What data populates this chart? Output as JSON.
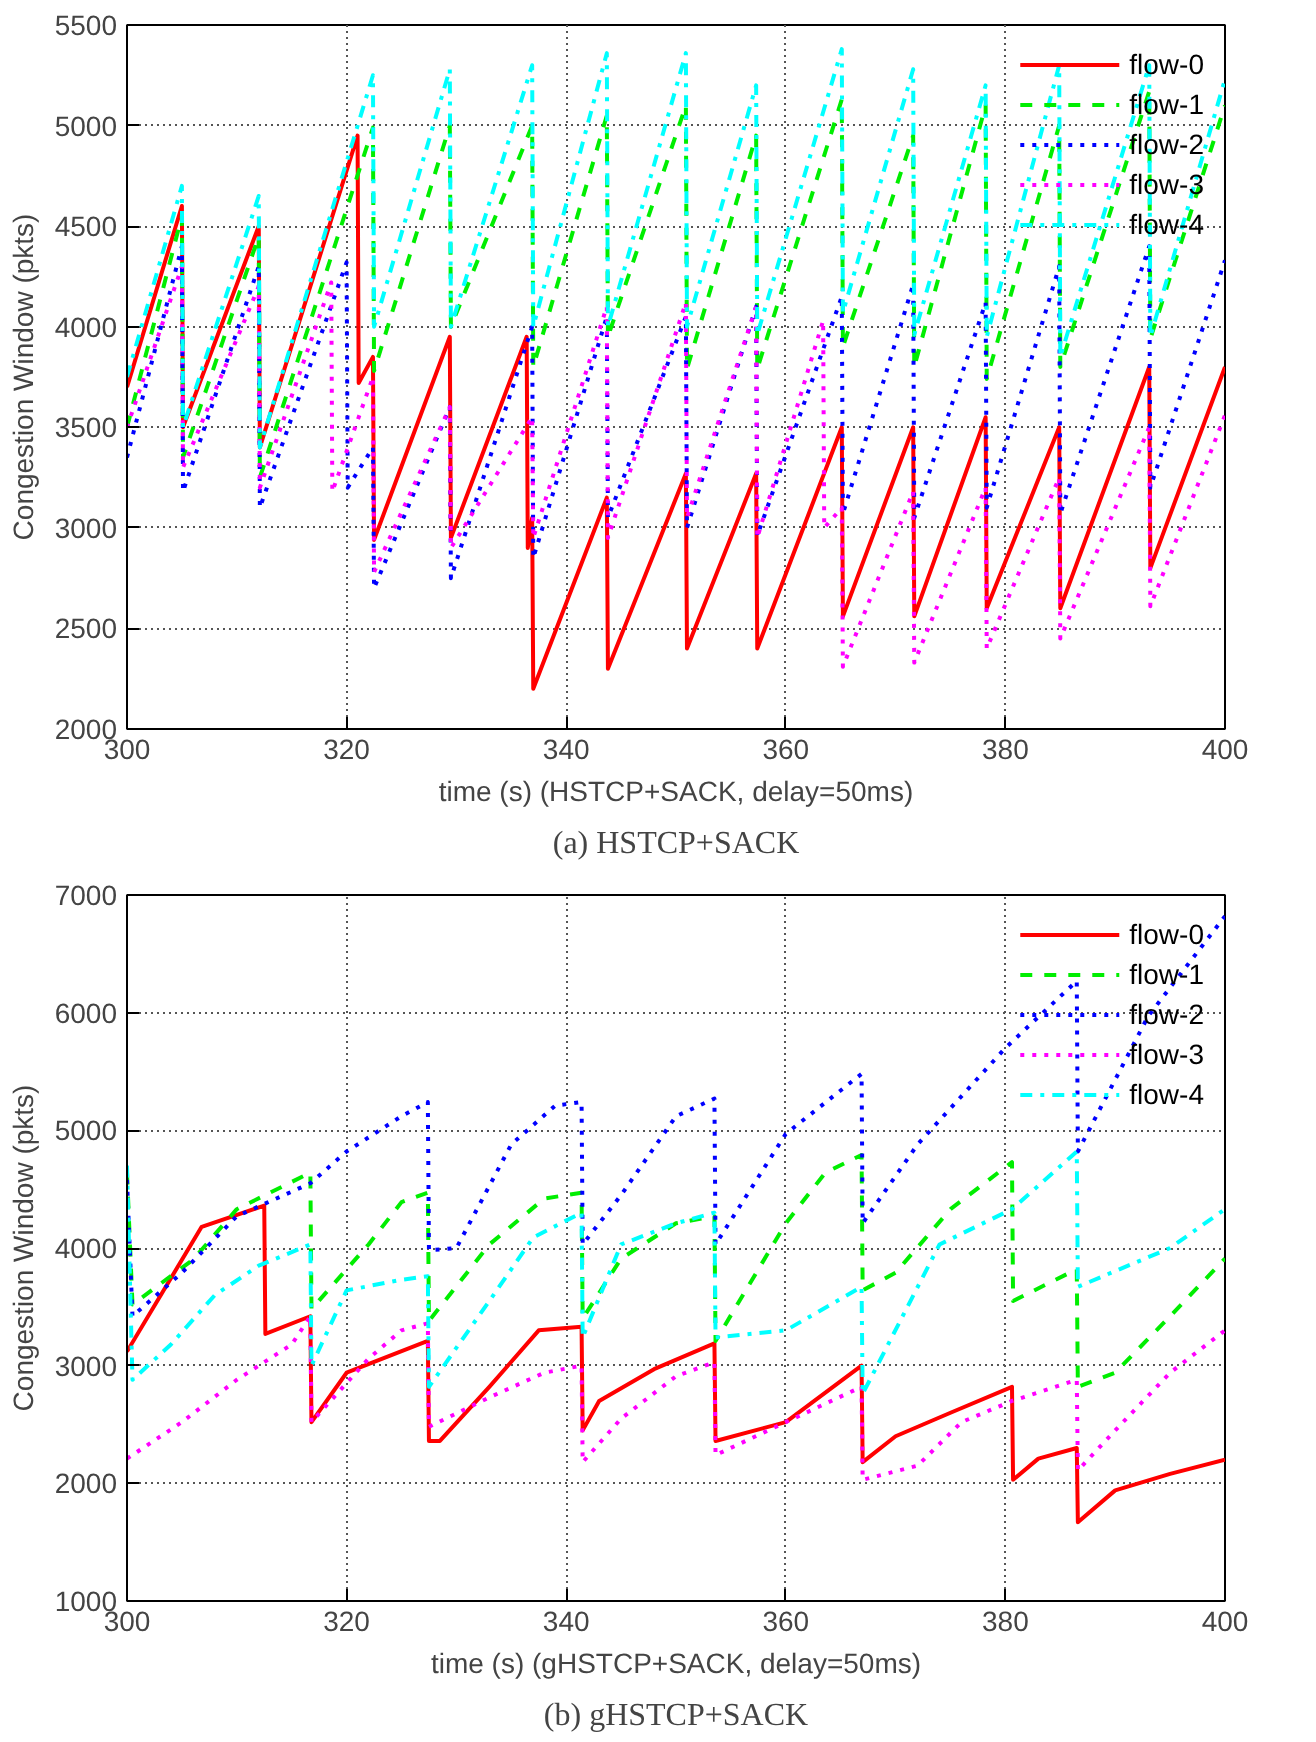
{
  "chart_data": [
    {
      "type": "line",
      "xlabel": "time (s) (HSTCP+SACK, delay=50ms)",
      "ylabel": "Congestion Window (pkts)",
      "annotations": [
        "(a) HSTCP+SACK"
      ],
      "xlim": [
        300,
        400
      ],
      "ylim": [
        2000,
        5500
      ],
      "xticks": [
        300,
        320,
        340,
        360,
        380,
        400
      ],
      "yticks": [
        2000,
        2500,
        3000,
        3500,
        4000,
        4500,
        5000,
        5500
      ],
      "grid": true,
      "legend": "top right",
      "series": [
        {
          "name": "flow-0",
          "color": "#ff0000",
          "line_style": "solid",
          "x": [
            300,
            305,
            305.1,
            312,
            312.1,
            321,
            321.1,
            322.4,
            322.5,
            329.4,
            329.5,
            336.4,
            336.5,
            336.9,
            337,
            343.7,
            343.8,
            350.9,
            351,
            357.3,
            357.4,
            365.1,
            365.2,
            371.6,
            371.7,
            378.2,
            378.3,
            384.9,
            385,
            393.1,
            393.2,
            400
          ],
          "values": [
            3700,
            4600,
            3500,
            4500,
            3400,
            4950,
            3720,
            3850,
            2940,
            3950,
            2950,
            3950,
            2900,
            3050,
            2200,
            3150,
            2300,
            3270,
            2400,
            3270,
            2400,
            3500,
            2560,
            3500,
            2560,
            3550,
            2600,
            3500,
            2600,
            3800,
            2800,
            3800
          ]
        },
        {
          "name": "flow-1",
          "color": "#00ee00",
          "line_style": "dashed",
          "x": [
            300,
            305,
            305.1,
            312,
            312.1,
            322.4,
            322.5,
            329.4,
            329.5,
            336.9,
            337,
            343.7,
            343.8,
            350.9,
            351,
            357.3,
            357.4,
            365.1,
            365.2,
            371.6,
            371.7,
            378.2,
            378.3,
            384.9,
            385,
            393.1,
            393.2,
            400
          ],
          "values": [
            3500,
            4550,
            3350,
            4450,
            3250,
            4990,
            3780,
            5000,
            4000,
            5000,
            3800,
            5050,
            3950,
            5100,
            3790,
            4950,
            3790,
            5130,
            3900,
            4950,
            3800,
            5100,
            3740,
            5000,
            3800,
            5170,
            3940,
            5100
          ]
        },
        {
          "name": "flow-2",
          "color": "#0000ff",
          "line_style": "dotted",
          "x": [
            300,
            305,
            305.1,
            312,
            312.1,
            320,
            320.1,
            322.4,
            322.5,
            329.4,
            329.5,
            336.9,
            337,
            343.7,
            343.8,
            350.9,
            351,
            357.3,
            357.4,
            365.1,
            365.2,
            371.6,
            371.7,
            378.2,
            378.3,
            384.9,
            385,
            393.1,
            393.2,
            400
          ],
          "values": [
            3350,
            4400,
            3180,
            4300,
            3100,
            4320,
            3200,
            3400,
            2700,
            3600,
            2750,
            4000,
            2850,
            4050,
            3050,
            4050,
            3000,
            4100,
            2960,
            4150,
            3070,
            4210,
            3050,
            4120,
            3100,
            4300,
            3070,
            4400,
            3200,
            4330
          ]
        },
        {
          "name": "flow-3",
          "color": "#ff00ff",
          "line_style": "dotted",
          "x": [
            300,
            305,
            305.1,
            312,
            312.1,
            318.6,
            318.7,
            322.4,
            322.5,
            329.4,
            329.5,
            336.9,
            337,
            343.7,
            343.8,
            350.9,
            351,
            357.3,
            357.4,
            363.4,
            363.5,
            365.1,
            365.2,
            371.6,
            371.7,
            378.2,
            378.3,
            384.9,
            385,
            393.1,
            393.2,
            400
          ],
          "values": [
            3500,
            4300,
            3300,
            4200,
            3200,
            4220,
            3180,
            3750,
            2780,
            3600,
            2900,
            3550,
            2950,
            4100,
            2950,
            4120,
            3050,
            4100,
            2950,
            4030,
            3000,
            3100,
            2310,
            3180,
            2330,
            3200,
            2400,
            3250,
            2450,
            3500,
            2610,
            3560
          ]
        },
        {
          "name": "flow-4",
          "color": "#00ffff",
          "line_style": "dashdot",
          "x": [
            300,
            305,
            305.1,
            312,
            312.1,
            322.4,
            322.5,
            329.4,
            329.5,
            336.9,
            337,
            343.7,
            343.8,
            350.9,
            351,
            357.3,
            357.4,
            365.1,
            365.2,
            371.6,
            371.7,
            378.2,
            378.3,
            384.9,
            385,
            393.1,
            393.2,
            400
          ],
          "values": [
            3750,
            4700,
            3500,
            4650,
            3400,
            5250,
            4000,
            5280,
            4000,
            5300,
            4000,
            5360,
            4000,
            5360,
            4000,
            5200,
            3960,
            5380,
            4070,
            5280,
            3960,
            5200,
            3950,
            5300,
            3850,
            5300,
            3950,
            5230
          ]
        }
      ]
    },
    {
      "type": "line",
      "xlabel": "time (s) (gHSTCP+SACK, delay=50ms)",
      "ylabel": "Congestion Window (pkts)",
      "annotations": [
        "(b) gHSTCP+SACK"
      ],
      "xlim": [
        300,
        400
      ],
      "ylim": [
        1000,
        7000
      ],
      "xticks": [
        300,
        320,
        340,
        360,
        380,
        400
      ],
      "yticks": [
        1000,
        2000,
        3000,
        4000,
        5000,
        6000,
        7000
      ],
      "grid": true,
      "legend": "top right",
      "series": [
        {
          "name": "flow-0",
          "color": "#ff0000",
          "line_style": "solid",
          "x": [
            300,
            306.8,
            312.5,
            312.6,
            316.7,
            316.8,
            320,
            327.4,
            327.5,
            328.5,
            333,
            337.5,
            341.4,
            341.5,
            343,
            348,
            353.5,
            353.6,
            360,
            366.9,
            367,
            370,
            375,
            380.6,
            380.7,
            383,
            386.5,
            386.6,
            390,
            395,
            400
          ],
          "values": [
            3120,
            4180,
            4360,
            3270,
            3420,
            2520,
            2940,
            3210,
            2360,
            2360,
            2820,
            3300,
            3330,
            2450,
            2700,
            2970,
            3190,
            2360,
            2520,
            3000,
            2180,
            2400,
            2600,
            2820,
            2030,
            2210,
            2300,
            1670,
            1940,
            2080,
            2200
          ]
        },
        {
          "name": "flow-1",
          "color": "#00ee00",
          "line_style": "dashed",
          "x": [
            300,
            300.5,
            306,
            310,
            316.7,
            316.8,
            322,
            325,
            327.4,
            327.5,
            333,
            338,
            341.4,
            341.5,
            345,
            350,
            353.5,
            353.6,
            360,
            363.6,
            366.9,
            367,
            370,
            375,
            380.6,
            380.7,
            386.5,
            386.6,
            390,
            395,
            400
          ],
          "values": [
            4640,
            3520,
            3900,
            4330,
            4640,
            3480,
            4030,
            4390,
            4470,
            3380,
            4030,
            4420,
            4470,
            3400,
            3910,
            4210,
            4270,
            3210,
            4210,
            4640,
            4790,
            3640,
            3790,
            4330,
            4730,
            3550,
            3820,
            2820,
            2940,
            3420,
            3910
          ]
        },
        {
          "name": "flow-2",
          "color": "#0000ff",
          "line_style": "dotted",
          "x": [
            300,
            300.5,
            305,
            310,
            316.7,
            320,
            325,
            327.4,
            327.5,
            330,
            335,
            339,
            341.4,
            341.5,
            345,
            350,
            353.5,
            353.6,
            360,
            366.9,
            367,
            372,
            380,
            386.5,
            386.6,
            393,
            400
          ],
          "values": [
            4580,
            3420,
            3790,
            4270,
            4550,
            4820,
            5120,
            5240,
            3980,
            4000,
            4880,
            5210,
            5240,
            4030,
            4450,
            5120,
            5270,
            4030,
            4970,
            5480,
            4210,
            4880,
            5700,
            6270,
            4820,
            5970,
            6820
          ]
        },
        {
          "name": "flow-3",
          "color": "#ff00ff",
          "line_style": "dotted",
          "x": [
            300,
            305,
            310,
            315,
            316.7,
            316.8,
            322,
            325,
            327.4,
            327.5,
            333,
            338,
            341.4,
            341.5,
            345,
            350,
            353.5,
            353.6,
            360,
            366.9,
            367,
            372,
            376,
            380.6,
            386.5,
            386.6,
            390,
            395,
            400
          ],
          "values": [
            2210,
            2520,
            2880,
            3180,
            3420,
            2520,
            3060,
            3300,
            3360,
            2480,
            2730,
            2940,
            3000,
            2180,
            2550,
            2910,
            3030,
            2240,
            2520,
            2820,
            2030,
            2150,
            2520,
            2700,
            2880,
            2110,
            2450,
            2940,
            3300
          ]
        },
        {
          "name": "flow-4",
          "color": "#00ffff",
          "line_style": "dashdot",
          "x": [
            300,
            300.5,
            304,
            308,
            312,
            316.7,
            316.8,
            320,
            325,
            327.4,
            327.5,
            333,
            337,
            341.4,
            341.5,
            345,
            350,
            353.5,
            353.6,
            360,
            366.9,
            367,
            374,
            380.6,
            386.5,
            386.6,
            395,
            400
          ],
          "values": [
            4700,
            2880,
            3180,
            3600,
            3850,
            4030,
            3000,
            3640,
            3730,
            3760,
            2820,
            3550,
            4090,
            4300,
            3240,
            4030,
            4210,
            4300,
            3240,
            3300,
            3670,
            2760,
            4030,
            4330,
            4820,
            3670,
            4000,
            4330
          ]
        }
      ]
    }
  ]
}
